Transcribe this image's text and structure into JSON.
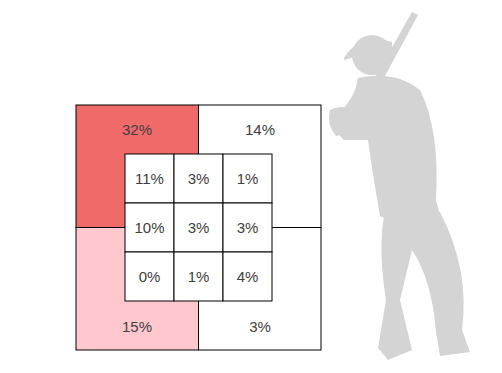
{
  "chart_data": {
    "type": "heatmap",
    "data_labels": true,
    "outer": {
      "values": [
        32,
        14,
        15,
        3
      ],
      "value_labels": [
        "32%",
        "14%",
        "15%",
        "3%"
      ],
      "colors": [
        "#f06a6a",
        "#ffffff",
        "#ffc7ce",
        "#ffffff"
      ]
    },
    "cells": {
      "values": [
        [
          11,
          3,
          1
        ],
        [
          10,
          3,
          3
        ],
        [
          0,
          1,
          4
        ]
      ],
      "value_labels": [
        [
          "11%",
          "3%",
          "1%"
        ],
        [
          "10%",
          "3%",
          "3%"
        ],
        [
          "0%",
          "1%",
          "4%"
        ]
      ],
      "color": "#ffffff"
    }
  }
}
